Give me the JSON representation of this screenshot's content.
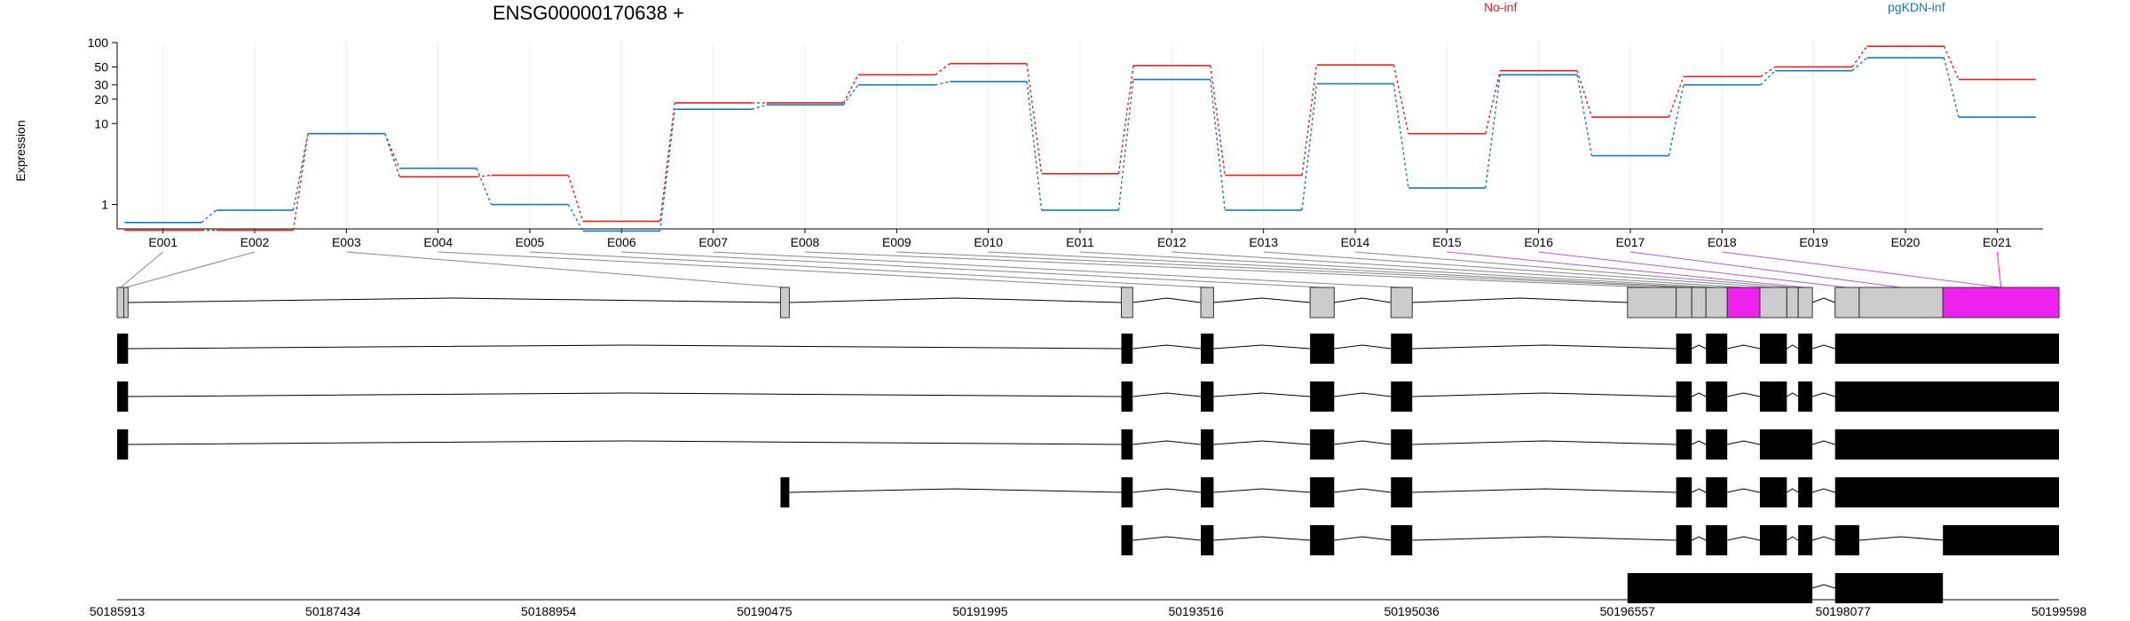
{
  "chart_data": {
    "type": "line",
    "title": "ENSG00000170638 +",
    "ylabel": "Expression",
    "y_scale": "log",
    "ylim": [
      0.5,
      100
    ],
    "y_ticks": [
      "100",
      "50",
      "30",
      "20",
      "10",
      "1"
    ],
    "categories": [
      "E001",
      "E002",
      "E003",
      "E004",
      "E005",
      "E006",
      "E007",
      "E008",
      "E009",
      "E010",
      "E011",
      "E012",
      "E013",
      "E014",
      "E015",
      "E016",
      "E017",
      "E018",
      "E019",
      "E020",
      "E021"
    ],
    "series": [
      {
        "name": "No-inf",
        "color": "#d62728",
        "values": [
          0.48,
          0.48,
          7.5,
          2.2,
          2.3,
          0.62,
          18,
          18,
          40,
          55,
          2.4,
          52,
          2.3,
          53,
          7.5,
          45,
          12,
          38,
          50,
          90,
          35
        ]
      },
      {
        "name": "pgKDN-inf",
        "color": "#1f77b4",
        "values": [
          0.6,
          0.85,
          7.5,
          2.8,
          1.0,
          0.47,
          15,
          17,
          30,
          33,
          0.85,
          35,
          0.85,
          31,
          1.6,
          40,
          4.0,
          30,
          45,
          65,
          12
        ]
      }
    ],
    "genomic_axis": {
      "start": 50185913,
      "end": 50199598,
      "tick_labels": [
        "50185913",
        "50187434",
        "50188954",
        "50190475",
        "50191995",
        "50193516",
        "50195036",
        "50196557",
        "50198077",
        "50199598"
      ]
    },
    "gene_model": {
      "exon_segments": [
        [
          50185913,
          50185960
        ],
        [
          50185960,
          50185990
        ],
        [
          50190588,
          50190650
        ],
        [
          50192990,
          50193070
        ],
        [
          50193550,
          50193640
        ],
        [
          50194320,
          50194490
        ],
        [
          50194890,
          50195040
        ],
        [
          50196557,
          50196900
        ],
        [
          50196900,
          50197010
        ],
        [
          50197010,
          50197110
        ],
        [
          50197110,
          50197260
        ],
        [
          50197260,
          50197490
        ],
        [
          50197490,
          50197680
        ],
        [
          50197680,
          50197760
        ],
        [
          50197760,
          50197860
        ],
        [
          50198020,
          50198190
        ],
        [
          50198190,
          50198780
        ],
        [
          50198780,
          50199598
        ]
      ],
      "highlight_color": "#ee22ee",
      "highlighted_segments": [
        11,
        17
      ],
      "transcripts": [
        [
          [
            50185913,
            50185990
          ],
          [
            50192990,
            50193070
          ],
          [
            50193550,
            50193640
          ],
          [
            50194320,
            50194490
          ],
          [
            50194890,
            50195040
          ],
          [
            50196900,
            50197010
          ],
          [
            50197110,
            50197260
          ],
          [
            50197490,
            50197680
          ],
          [
            50197760,
            50197860
          ],
          [
            50198020,
            50199598
          ]
        ],
        [
          [
            50185913,
            50185990
          ],
          [
            50192990,
            50193070
          ],
          [
            50193550,
            50193640
          ],
          [
            50194320,
            50194490
          ],
          [
            50194890,
            50195040
          ],
          [
            50196900,
            50197010
          ],
          [
            50197110,
            50197260
          ],
          [
            50197490,
            50197680
          ],
          [
            50197760,
            50197860
          ],
          [
            50198020,
            50199598
          ]
        ],
        [
          [
            50185913,
            50185990
          ],
          [
            50192990,
            50193070
          ],
          [
            50193550,
            50193640
          ],
          [
            50194320,
            50194490
          ],
          [
            50194890,
            50195040
          ],
          [
            50196900,
            50197010
          ],
          [
            50197110,
            50197260
          ],
          [
            50197490,
            50197860
          ],
          [
            50198020,
            50199598
          ]
        ],
        [
          [
            50190588,
            50190650
          ],
          [
            50192990,
            50193070
          ],
          [
            50193550,
            50193640
          ],
          [
            50194320,
            50194490
          ],
          [
            50194890,
            50195040
          ],
          [
            50196900,
            50197010
          ],
          [
            50197110,
            50197260
          ],
          [
            50197490,
            50197680
          ],
          [
            50197760,
            50197860
          ],
          [
            50198020,
            50199598
          ]
        ],
        [
          [
            50192990,
            50193070
          ],
          [
            50193550,
            50193640
          ],
          [
            50194320,
            50194490
          ],
          [
            50194890,
            50195040
          ],
          [
            50196900,
            50197010
          ],
          [
            50197110,
            50197260
          ],
          [
            50197490,
            50197680
          ],
          [
            50197760,
            50197860
          ],
          [
            50198020,
            50198190
          ],
          [
            50198780,
            50199598
          ]
        ],
        [
          [
            50196557,
            50197860
          ],
          [
            50198020,
            50198780
          ]
        ]
      ]
    }
  }
}
